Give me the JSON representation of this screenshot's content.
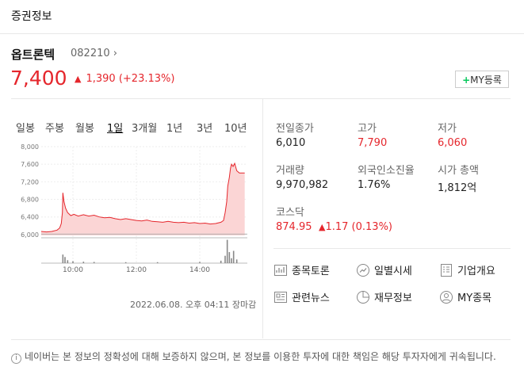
{
  "header": {
    "title": "증권정보"
  },
  "stock": {
    "name": "옵트론텍",
    "code": "082210",
    "price": "7,400",
    "change_amount": "1,390",
    "change_percent": "(+23.13%)",
    "my_button": "MY등록"
  },
  "tabs": [
    "일봉",
    "주봉",
    "월봉",
    "1일",
    "3개월",
    "1년",
    "3년",
    "10년"
  ],
  "active_tab": "1일",
  "timestamp": "2022.06.08. 오후 04:11 장마감",
  "info": [
    {
      "label": "전일종가",
      "value": "6,010",
      "color": "normal"
    },
    {
      "label": "고가",
      "value": "7,790",
      "color": "red"
    },
    {
      "label": "저가",
      "value": "6,060",
      "color": "red"
    },
    {
      "label": "거래량",
      "value": "9,970,982",
      "color": "normal"
    },
    {
      "label": "외국인소진율",
      "value": "1.76%",
      "color": "normal"
    },
    {
      "label": "시가 총액",
      "value": "1,812억",
      "color": "normal"
    }
  ],
  "kosdaq": {
    "label": "코스닥",
    "value": "874.95",
    "change": "1.17 (0.13%)"
  },
  "menu": [
    {
      "label": "종목토론",
      "icon": "chart-board-icon"
    },
    {
      "label": "일별시세",
      "icon": "trend-icon"
    },
    {
      "label": "기업개요",
      "icon": "document-icon"
    },
    {
      "label": "관련뉴스",
      "icon": "news-icon"
    },
    {
      "label": "재무정보",
      "icon": "pie-icon"
    },
    {
      "label": "MY종목",
      "icon": "user-icon"
    }
  ],
  "notice": "네이버는 본 정보의 정확성에 대해 보증하지 않으며, 본 정보를 이용한 투자에 대한 책임은 해당 투자자에게 귀속됩니다.",
  "chart_data": {
    "type": "line",
    "y_ticks": [
      "8,000",
      "7,600",
      "7,200",
      "6,800",
      "6,400",
      "6,000"
    ],
    "x_ticks": [
      "10:00",
      "12:00",
      "14:00"
    ],
    "ylim": [
      5980,
      8000
    ],
    "x_range": [
      540,
      930
    ],
    "points": [
      [
        540,
        6070
      ],
      [
        550,
        6060
      ],
      [
        560,
        6070
      ],
      [
        570,
        6100
      ],
      [
        575,
        6150
      ],
      [
        578,
        6250
      ],
      [
        580,
        6500
      ],
      [
        581,
        6950
      ],
      [
        583,
        6750
      ],
      [
        586,
        6600
      ],
      [
        590,
        6500
      ],
      [
        596,
        6430
      ],
      [
        602,
        6460
      ],
      [
        610,
        6420
      ],
      [
        620,
        6450
      ],
      [
        630,
        6420
      ],
      [
        640,
        6440
      ],
      [
        650,
        6400
      ],
      [
        660,
        6380
      ],
      [
        670,
        6390
      ],
      [
        680,
        6360
      ],
      [
        690,
        6340
      ],
      [
        700,
        6360
      ],
      [
        710,
        6340
      ],
      [
        720,
        6320
      ],
      [
        730,
        6310
      ],
      [
        740,
        6330
      ],
      [
        750,
        6300
      ],
      [
        760,
        6290
      ],
      [
        770,
        6280
      ],
      [
        780,
        6300
      ],
      [
        790,
        6280
      ],
      [
        800,
        6270
      ],
      [
        810,
        6280
      ],
      [
        820,
        6260
      ],
      [
        830,
        6270
      ],
      [
        840,
        6250
      ],
      [
        850,
        6260
      ],
      [
        860,
        6240
      ],
      [
        870,
        6250
      ],
      [
        880,
        6280
      ],
      [
        885,
        6320
      ],
      [
        888,
        6500
      ],
      [
        891,
        6750
      ],
      [
        893,
        7100
      ],
      [
        896,
        7300
      ],
      [
        898,
        7500
      ],
      [
        900,
        7600
      ],
      [
        903,
        7550
      ],
      [
        906,
        7620
      ],
      [
        910,
        7450
      ],
      [
        915,
        7400
      ],
      [
        920,
        7400
      ],
      [
        925,
        7400
      ]
    ],
    "volume": [
      [
        581,
        0.35
      ],
      [
        585,
        0.25
      ],
      [
        590,
        0.12
      ],
      [
        600,
        0.08
      ],
      [
        620,
        0.06
      ],
      [
        640,
        0.05
      ],
      [
        700,
        0.04
      ],
      [
        760,
        0.04
      ],
      [
        840,
        0.05
      ],
      [
        880,
        0.1
      ],
      [
        888,
        0.3
      ],
      [
        892,
        0.95
      ],
      [
        896,
        0.45
      ],
      [
        900,
        0.2
      ],
      [
        904,
        0.5
      ],
      [
        910,
        0.15
      ]
    ]
  }
}
